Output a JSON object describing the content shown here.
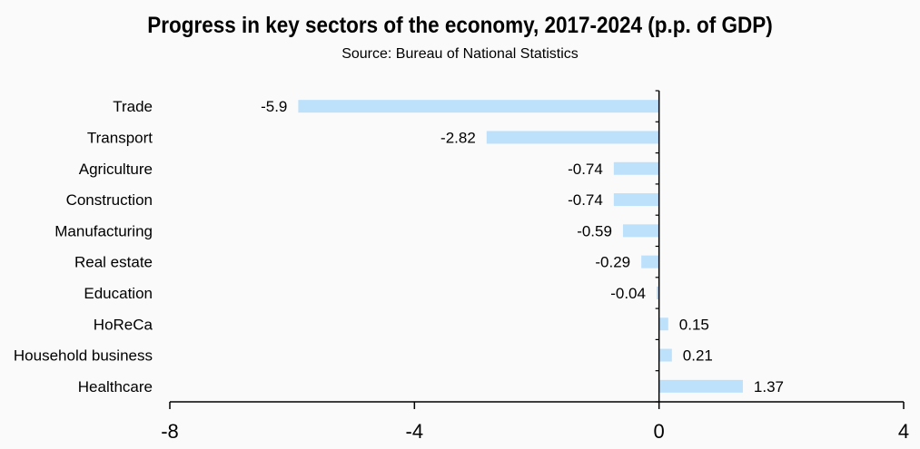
{
  "chart_data": {
    "type": "bar",
    "orientation": "horizontal",
    "title": "Progress in key sectors of the economy, 2017-2024 (p.p. of GDP)",
    "subtitle": "Source: Bureau of National Statistics",
    "categories": [
      "Trade",
      "Transport",
      "Agriculture",
      "Construction",
      "Manufacturing",
      "Real estate",
      "Education",
      "HoReCa",
      "Household business",
      "Healthcare"
    ],
    "values": [
      -5.9,
      -2.82,
      -0.74,
      -0.74,
      -0.59,
      -0.29,
      -0.04,
      0.15,
      0.21,
      1.37
    ],
    "data_labels": [
      "-5.9",
      "-2.82",
      "-0.74",
      "-0.74",
      "-0.59",
      "-0.29",
      "-0.04",
      "0.15",
      "0.21",
      "1.37"
    ],
    "xlim": [
      -8,
      4
    ],
    "xticks": [
      -8,
      -4,
      0,
      4
    ],
    "xtick_labels": [
      "-8",
      "-4",
      "0",
      "4"
    ],
    "bar_color": "#bde0fb",
    "grid": false,
    "legend": "none"
  }
}
